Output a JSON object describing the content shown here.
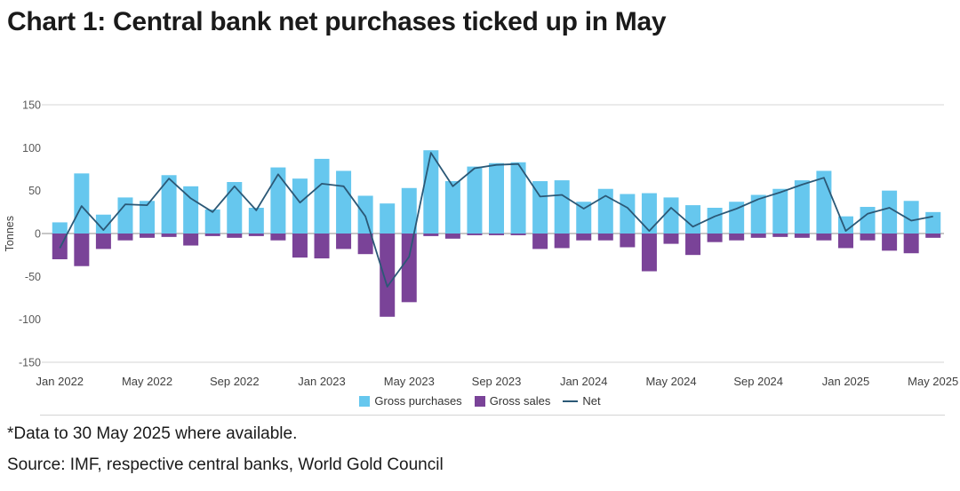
{
  "page": {
    "title": "Chart 1: Central bank net purchases ticked up in May",
    "footnote": "*Data to 30 May 2025 where available.",
    "source": "Source: IMF, respective central banks, World Gold Council"
  },
  "chart_data": {
    "type": "bar",
    "title": "Chart 1: Central bank net purchases ticked up in May",
    "xlabel": "",
    "ylabel": "Tonnes",
    "ylim": [
      -150,
      150
    ],
    "yticks": [
      150,
      100,
      50,
      0,
      -50,
      -100,
      -150
    ],
    "grid": false,
    "legend_position": "bottom",
    "x": [
      "Jan 2022",
      "Feb 2022",
      "Mar 2022",
      "Apr 2022",
      "May 2022",
      "Jun 2022",
      "Jul 2022",
      "Aug 2022",
      "Sep 2022",
      "Oct 2022",
      "Nov 2022",
      "Dec 2022",
      "Jan 2023",
      "Feb 2023",
      "Mar 2023",
      "Apr 2023",
      "May 2023",
      "Jun 2023",
      "Jul 2023",
      "Aug 2023",
      "Sep 2023",
      "Oct 2023",
      "Nov 2023",
      "Dec 2023",
      "Jan 2024",
      "Feb 2024",
      "Mar 2024",
      "Apr 2024",
      "May 2024",
      "Jun 2024",
      "Jul 2024",
      "Aug 2024",
      "Sep 2024",
      "Oct 2024",
      "Nov 2024",
      "Dec 2024",
      "Jan 2025",
      "Feb 2025",
      "Mar 2025",
      "Apr 2025",
      "May 2025"
    ],
    "xtick_labels": [
      "Jan 2022",
      "May 2022",
      "Sep 2022",
      "Jan 2023",
      "May 2023",
      "Sep 2023",
      "Jan 2024",
      "May 2024",
      "Sep 2024",
      "Jan 2025",
      "May 2025"
    ],
    "series": [
      {
        "name": "Gross purchases",
        "type": "bar",
        "color": "#66C7EE",
        "values": [
          13,
          70,
          22,
          42,
          38,
          68,
          55,
          28,
          60,
          30,
          77,
          64,
          87,
          73,
          44,
          35,
          53,
          97,
          61,
          78,
          82,
          83,
          61,
          62,
          37,
          52,
          46,
          47,
          42,
          33,
          30,
          37,
          45,
          52,
          62,
          73,
          20,
          31,
          50,
          38,
          25
        ]
      },
      {
        "name": "Gross sales",
        "type": "bar",
        "color": "#7A4398",
        "values": [
          -30,
          -38,
          -18,
          -8,
          -5,
          -4,
          -14,
          -3,
          -5,
          -3,
          -8,
          -28,
          -29,
          -18,
          -24,
          -97,
          -80,
          -3,
          -6,
          -2,
          -2,
          -2,
          -18,
          -17,
          -8,
          -8,
          -16,
          -44,
          -12,
          -25,
          -10,
          -8,
          -5,
          -4,
          -5,
          -8,
          -17,
          -8,
          -20,
          -23,
          -5
        ]
      },
      {
        "name": "Net",
        "type": "line",
        "color": "#2B5876",
        "values": [
          -17,
          32,
          4,
          34,
          33,
          64,
          41,
          25,
          55,
          27,
          69,
          36,
          58,
          55,
          20,
          -62,
          -27,
          94,
          55,
          76,
          80,
          81,
          43,
          45,
          29,
          44,
          30,
          3,
          30,
          8,
          20,
          29,
          40,
          48,
          57,
          65,
          3,
          23,
          30,
          15,
          20
        ]
      }
    ]
  }
}
